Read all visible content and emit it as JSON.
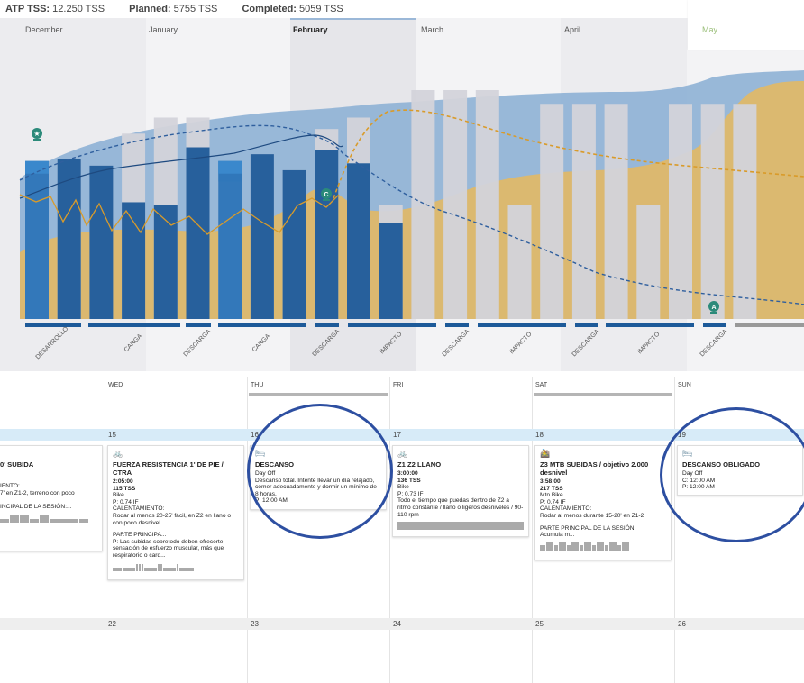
{
  "topbar": {
    "atp_label": "ATP TSS:",
    "atp_value": "12.250 TSS",
    "planned_label": "Planned:",
    "planned_value": "5755 TSS",
    "completed_label": "Completed:",
    "completed_value": "5059 TSS"
  },
  "months": [
    "December",
    "January",
    "February",
    "March",
    "April",
    "May"
  ],
  "phases": [
    "DESARROLLO",
    "CARGA",
    "DESCARGA",
    "CARGA",
    "DESCARGA",
    "IMPACTO",
    "DESCARGA",
    "IMPACTO",
    "DESCARGA",
    "IMPACTO",
    "DESCARGA"
  ],
  "chart_data": {
    "type": "bar",
    "weekly_bars": [
      {
        "completed": 0.69,
        "planned": 0.69
      },
      {
        "completed": 0.7,
        "planned": 0.7
      },
      {
        "completed": 0.67,
        "planned": 0.67
      },
      {
        "completed": 0.51,
        "planned": 0.81
      },
      {
        "completed": 0.5,
        "planned": 0.88
      },
      {
        "completed": 0.75,
        "planned": 0.88
      },
      {
        "completed": 0.69,
        "planned": 0.6
      },
      {
        "completed": 0.72,
        "planned": 0.72
      },
      {
        "completed": 0.65,
        "planned": 0.65
      },
      {
        "completed": 0.74,
        "planned": 0.83
      },
      {
        "completed": 0.68,
        "planned": 0.88
      },
      {
        "completed": 0.42,
        "planned": 0.5
      },
      {
        "completed": 0,
        "planned": 1
      },
      {
        "completed": 0,
        "planned": 1
      },
      {
        "completed": 0,
        "planned": 1
      },
      {
        "completed": 0,
        "planned": 0.5
      },
      {
        "completed": 0,
        "planned": 0.94
      },
      {
        "completed": 0,
        "planned": 0.94
      },
      {
        "completed": 0,
        "planned": 0.94
      },
      {
        "completed": 0,
        "planned": 0.5
      },
      {
        "completed": 0,
        "planned": 0.94
      },
      {
        "completed": 0,
        "planned": 0.94
      },
      {
        "completed": 0,
        "planned": 0.94
      }
    ],
    "markers": [
      {
        "week": 0,
        "icon": "trophy-icon"
      },
      {
        "week": 11,
        "label": "C"
      },
      {
        "week": 22,
        "label": "A"
      }
    ]
  },
  "calendar": {
    "days": [
      "WED",
      "THU",
      "FRI",
      "SAT",
      "SUN"
    ],
    "week1_dates": [
      "15",
      "16",
      "17",
      "18",
      "19"
    ],
    "week2_dates": [
      "22",
      "23",
      "24",
      "25",
      "26"
    ],
    "cards": {
      "tue": {
        "title": "0' SUBIDA",
        "lines": [
          "IENTO:",
          "7' en Z1-2, terreno con poco",
          "",
          "INCIPAL DE LA SESIÓN:..."
        ]
      },
      "wed": {
        "title": "FUERZA RESISTENCIA 1' DE PIE / CTRA",
        "time": "2:05:00",
        "tss": "115 TSS",
        "lines": [
          "Bike",
          "P: 0.74 IF",
          "CALENTAMIENTO:",
          "Rodar al menos 20-25' fácil, en Z2 en llano o con poco desnivel",
          "",
          "PARTE PRINCIPA...",
          "P: Las subidas sobretodo deben ofrecerte sensación de esfuerzo muscular, más que respiratorio o card..."
        ]
      },
      "thu": {
        "title": "DESCANSO",
        "lines": [
          "Day Off",
          "Descanso total. Intente llevar un día relajado, comer adecuadamente y dormir un mínimo de 8 horas.",
          "P: 12:00 AM"
        ]
      },
      "fri": {
        "title": "Z1 Z2 LLANO",
        "time": "3:00:00",
        "tss": "136 TSS",
        "lines": [
          "Bike",
          "P: 0.73 IF",
          "Todo el tiempo que puedas dentro de Z2 a ritmo constante / llano o ligeros desniveles / 90-110 rpm"
        ]
      },
      "sat": {
        "title": "Z3 MTB SUBIDAS / objetivo 2.000 desnivel",
        "time": "3:58:00",
        "tss": "217 TSS",
        "lines": [
          "Mtn Bike",
          "P: 0.74 IF",
          "CALENTAMIENTO:",
          "Rodar al menos durante 15-20' en Z1-2",
          "",
          "PARTE PRINCIPAL DE LA SESIÓN:",
          "Acumula m..."
        ]
      },
      "sun": {
        "title": "DESCANSO OBLIGADO",
        "lines": [
          "Day Off",
          "C: 12:00 AM",
          "P: 12:00 AM"
        ]
      }
    }
  }
}
